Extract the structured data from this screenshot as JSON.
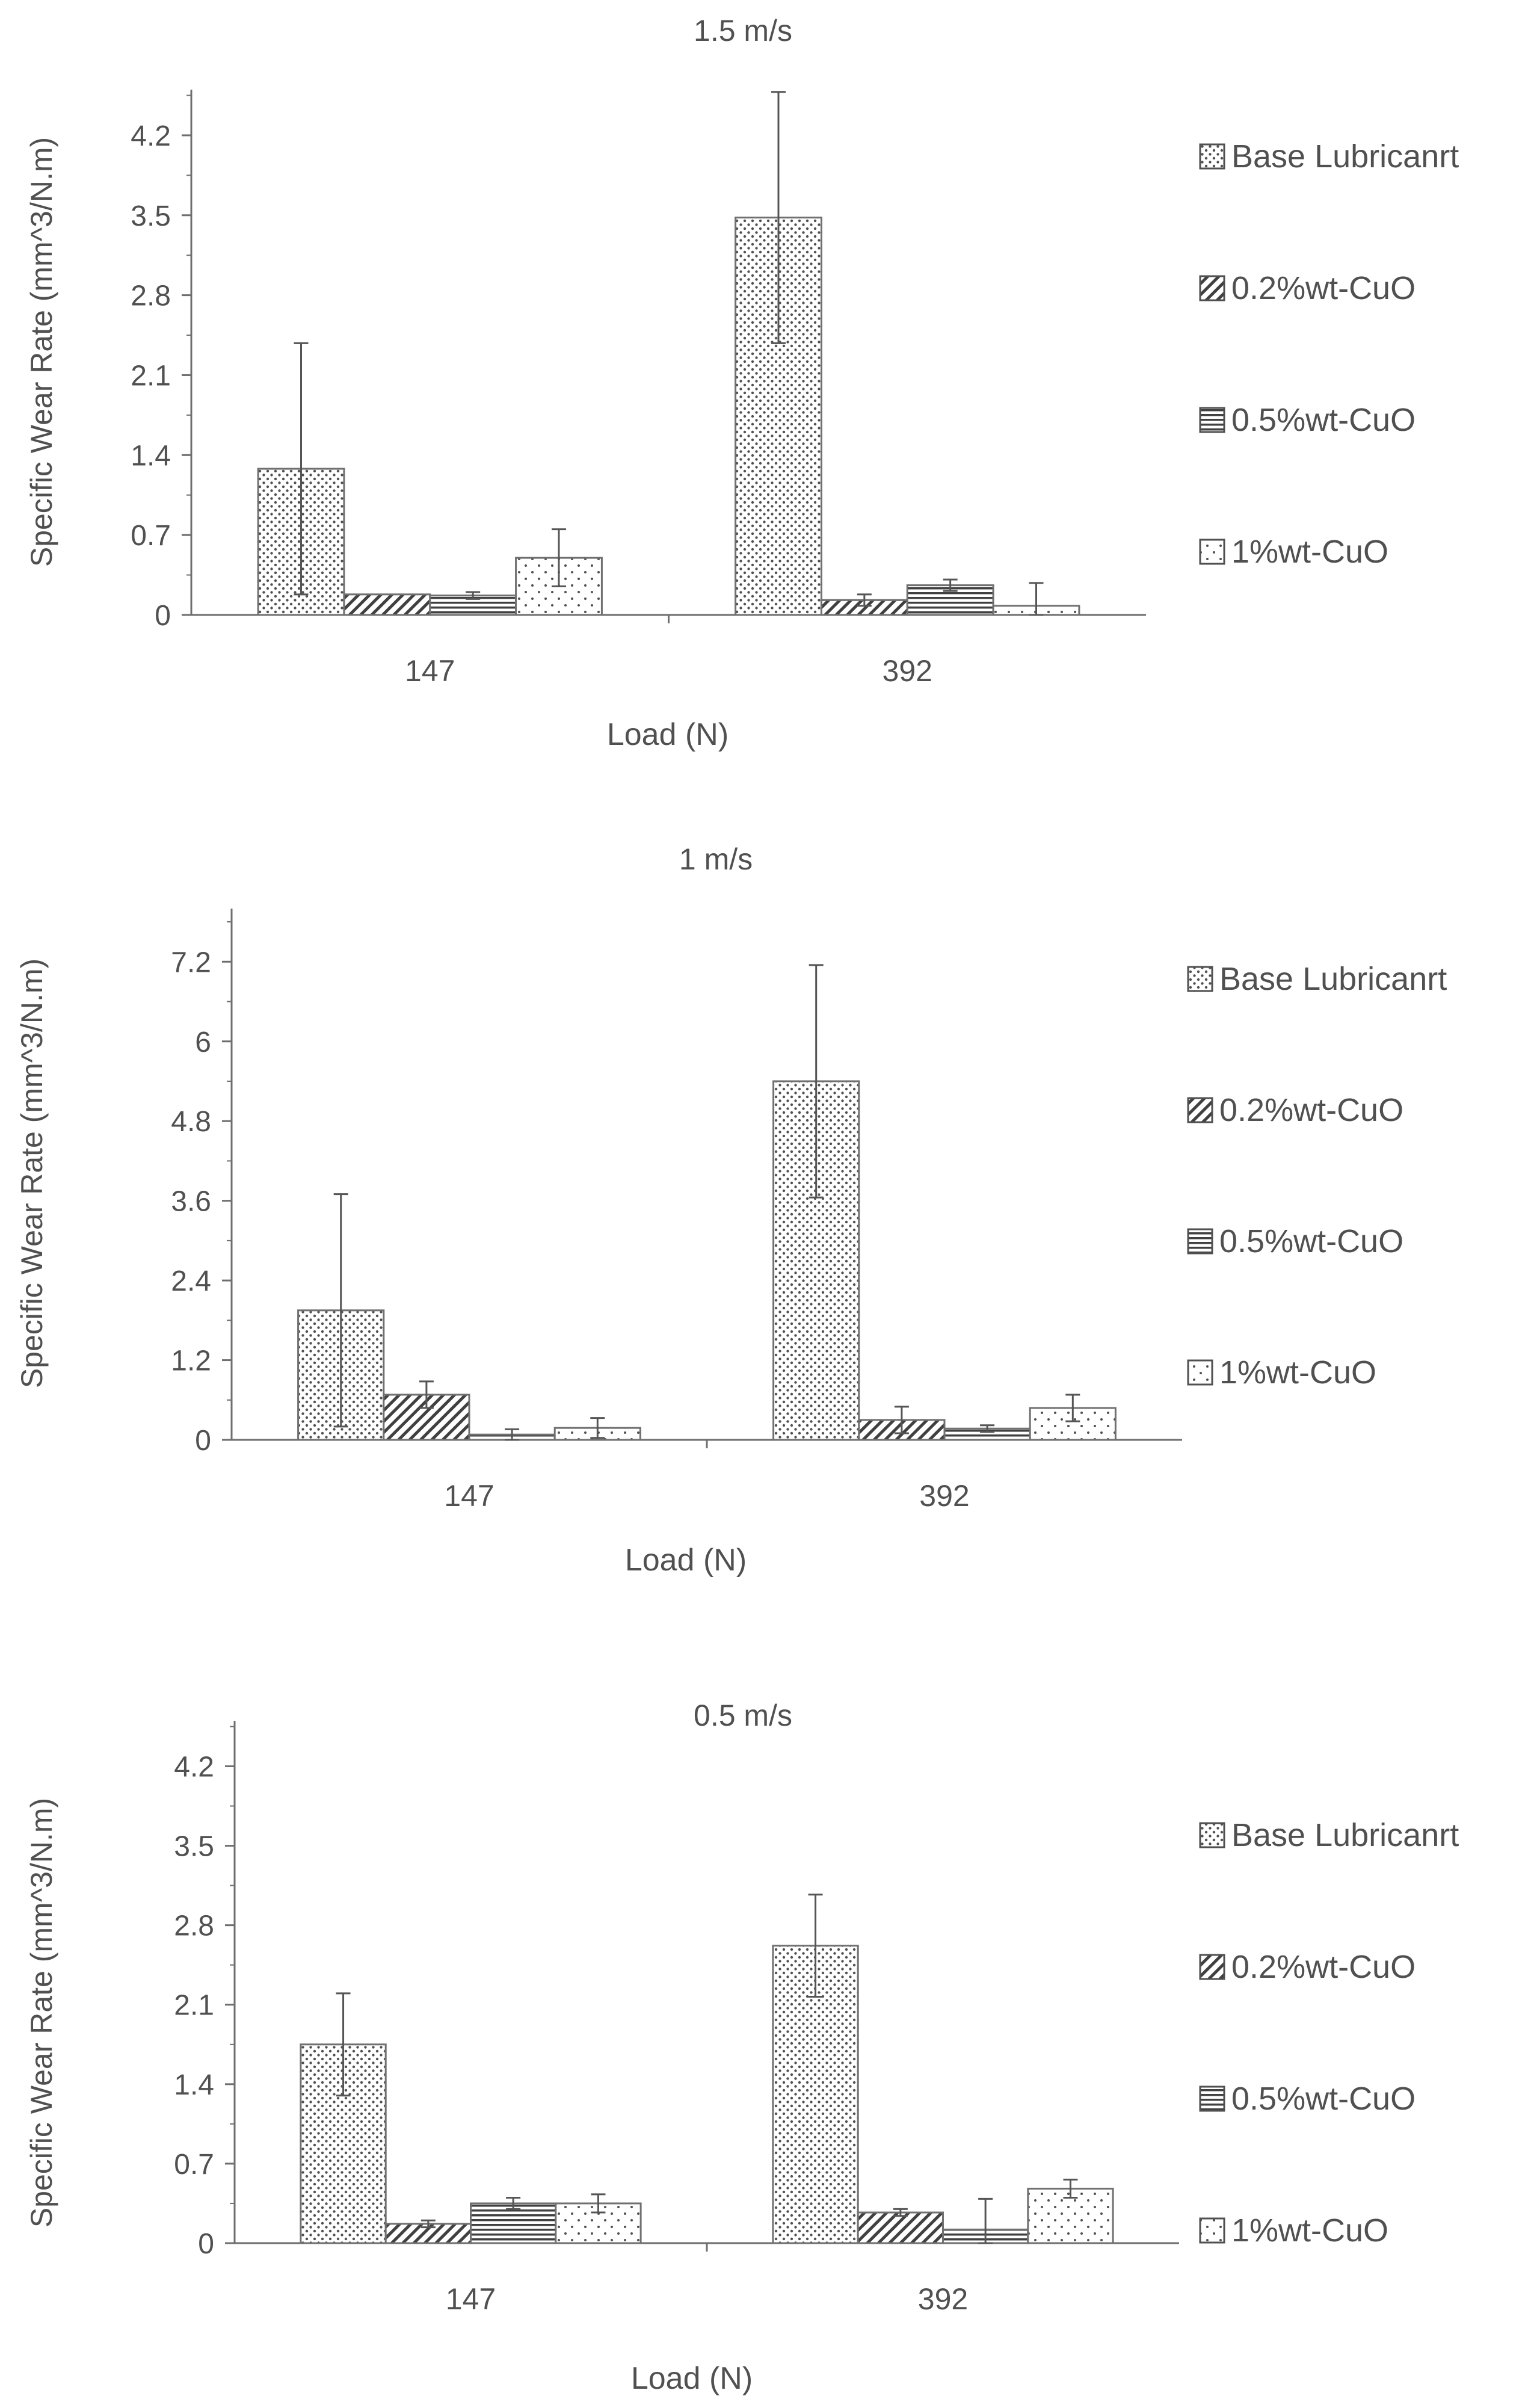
{
  "chart_data": [
    {
      "type": "bar",
      "title": "1.5 m/s",
      "xlabel": "Load (N)",
      "ylabel": "Specific Wear Rate  (mm^3/N.m)",
      "categories": [
        "147",
        "392"
      ],
      "ylim": [
        0,
        4.6
      ],
      "yticks": [
        "0",
        "0.7",
        "1.4",
        "2.1",
        "2.8",
        "3.5",
        "4.2"
      ],
      "legend_position": "right",
      "series": [
        {
          "name": "Base Lubricanrt",
          "pattern": "dots",
          "values": [
            1.28,
            3.48
          ],
          "errors": [
            1.1,
            1.1
          ]
        },
        {
          "name": " 0.2%wt-CuO",
          "pattern": "diagonal",
          "values": [
            0.18,
            0.13
          ],
          "errors": [
            0.0,
            0.05
          ]
        },
        {
          "name": "0.5%wt-CuO",
          "pattern": "horizontal",
          "values": [
            0.17,
            0.26
          ],
          "errors": [
            0.03,
            0.05
          ]
        },
        {
          "name": "1%wt-CuO",
          "pattern": "sparse-dots",
          "values": [
            0.5,
            0.08
          ],
          "errors": [
            0.25,
            0.2
          ]
        }
      ]
    },
    {
      "type": "bar",
      "title": "1 m/s",
      "xlabel": "Load (N)",
      "ylabel": "Specific Wear Rate  (mm^3/N.m)",
      "categories": [
        "147",
        "392"
      ],
      "ylim": [
        0,
        8.0
      ],
      "yticks": [
        "0",
        "1.2",
        "2.4",
        "3.6",
        "4.8",
        "6",
        "7.2"
      ],
      "legend_position": "right",
      "series": [
        {
          "name": "Base Lubricanrt",
          "pattern": "dots",
          "values": [
            1.95,
            5.4
          ],
          "errors": [
            1.75,
            1.75
          ]
        },
        {
          "name": " 0.2%wt-CuO",
          "pattern": "diagonal",
          "values": [
            0.68,
            0.3
          ],
          "errors": [
            0.2,
            0.2
          ]
        },
        {
          "name": "0.5%wt-CuO",
          "pattern": "horizontal",
          "values": [
            0.08,
            0.17
          ],
          "errors": [
            0.08,
            0.05
          ]
        },
        {
          "name": "1%wt-CuO",
          "pattern": "sparse-dots",
          "values": [
            0.18,
            0.48
          ],
          "errors": [
            0.15,
            0.2
          ]
        }
      ]
    },
    {
      "type": "bar",
      "title": "0.5 m/s",
      "xlabel": "Load (N)",
      "ylabel": "Specific Wear Rate  (mm^3/N.m)",
      "categories": [
        "147",
        "392"
      ],
      "ylim": [
        0,
        4.6
      ],
      "yticks": [
        "0",
        "0.7",
        "1.4",
        "2.1",
        "2.8",
        "3.5",
        "4.2"
      ],
      "legend_position": "right",
      "series": [
        {
          "name": "Base Lubricanrt",
          "pattern": "dots",
          "values": [
            1.75,
            2.62
          ],
          "errors": [
            0.45,
            0.45
          ]
        },
        {
          "name": " 0.2%wt-CuO",
          "pattern": "diagonal",
          "values": [
            0.17,
            0.27
          ],
          "errors": [
            0.03,
            0.03
          ]
        },
        {
          "name": "0.5%wt-CuO",
          "pattern": "horizontal",
          "values": [
            0.35,
            0.12
          ],
          "errors": [
            0.05,
            0.27
          ]
        },
        {
          "name": "1%wt-CuO",
          "pattern": "sparse-dots",
          "values": [
            0.35,
            0.48
          ],
          "errors": [
            0.08,
            0.08
          ]
        }
      ]
    }
  ]
}
